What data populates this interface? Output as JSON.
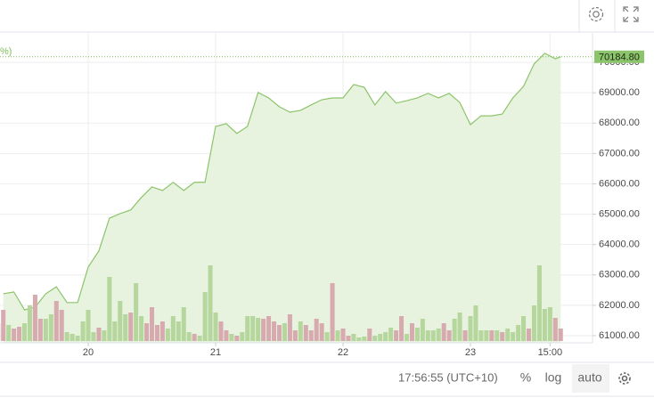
{
  "ui": {
    "partial_legend": "%)",
    "time": "17:56:55 (UTC+10)",
    "percent_button": "%",
    "log_button": "log",
    "auto_button": "auto"
  },
  "chart_data": {
    "type": "area",
    "x": [
      -16,
      -14,
      -12,
      -10,
      -8,
      -6,
      -4,
      -2,
      0,
      2,
      4,
      6,
      8,
      10,
      12,
      14,
      16,
      18,
      20,
      22,
      24,
      26,
      28,
      30,
      32,
      34,
      36,
      38,
      40,
      42,
      44,
      46,
      48,
      50,
      52,
      54,
      56,
      58,
      60,
      62,
      64,
      66,
      68,
      70,
      72,
      74,
      76,
      78,
      80,
      82,
      84,
      86,
      88,
      89
    ],
    "values": [
      62380,
      62440,
      61850,
      61940,
      62380,
      62610,
      62090,
      62090,
      63260,
      63790,
      64870,
      65020,
      65140,
      65550,
      65900,
      65780,
      66050,
      65780,
      66050,
      66050,
      67890,
      67980,
      67660,
      67890,
      69010,
      68830,
      68540,
      68360,
      68420,
      68600,
      68770,
      68830,
      68830,
      69270,
      69180,
      68600,
      69040,
      68660,
      68740,
      68830,
      68980,
      68830,
      68980,
      68680,
      67950,
      68240,
      68240,
      68300,
      68830,
      69210,
      69950,
      70300,
      70120,
      70184.8
    ],
    "color": "#8cc46c",
    "fill": "#e7f3de",
    "xlim": [
      -16.62,
      95
    ],
    "ylim": [
      60765,
      70970
    ],
    "xticks": [
      {
        "value": 0,
        "label": "20"
      },
      {
        "value": 24,
        "label": "21"
      },
      {
        "value": 48,
        "label": "22"
      },
      {
        "value": 72,
        "label": "23"
      },
      {
        "value": 87,
        "label": "15:00"
      }
    ],
    "yticks": [
      {
        "value": 61000,
        "label": "61000.00"
      },
      {
        "value": 62000,
        "label": "62000.00"
      },
      {
        "value": 63000,
        "label": "63000.00"
      },
      {
        "value": 64000,
        "label": "64000.00"
      },
      {
        "value": 65000,
        "label": "65000.00"
      },
      {
        "value": 66000,
        "label": "66000.00"
      },
      {
        "value": 67000,
        "label": "67000.00"
      },
      {
        "value": 68000,
        "label": "68000.00"
      },
      {
        "value": 69000,
        "label": "69000.00"
      },
      {
        "value": 70000,
        "label": "70000.00"
      }
    ],
    "grid": true,
    "last_price": {
      "value": 70184.8,
      "label": "70184.80"
    },
    "volume": {
      "type": "bar",
      "vlim": [
        0,
        100
      ],
      "x": [
        -17,
        -16,
        -15,
        -14,
        -13,
        -12,
        -11,
        -10,
        -9,
        -8,
        -7,
        -6,
        -5,
        -4,
        -3,
        -2,
        -1,
        0,
        1,
        2,
        3,
        4,
        5,
        6,
        7,
        8,
        9,
        10,
        11,
        12,
        13,
        14,
        15,
        16,
        17,
        18,
        19,
        20,
        21,
        22,
        23,
        24,
        25,
        26,
        27,
        28,
        29,
        30,
        31,
        32,
        33,
        34,
        35,
        36,
        37,
        38,
        39,
        40,
        41,
        42,
        43,
        44,
        45,
        46,
        47,
        48,
        49,
        50,
        51,
        52,
        53,
        54,
        55,
        56,
        57,
        58,
        59,
        60,
        61,
        62,
        63,
        64,
        65,
        66,
        67,
        68,
        69,
        70,
        71,
        72,
        73,
        74,
        75,
        76,
        77,
        78,
        79,
        80,
        81,
        82,
        83,
        84,
        85,
        86,
        87,
        88,
        89
      ],
      "values": [
        20,
        35,
        18,
        14,
        16,
        20,
        40,
        52,
        25,
        25,
        30,
        45,
        35,
        10,
        8,
        6,
        22,
        35,
        10,
        15,
        12,
        72,
        22,
        45,
        30,
        32,
        65,
        28,
        20,
        38,
        18,
        22,
        14,
        28,
        22,
        38,
        10,
        8,
        6,
        55,
        85,
        32,
        22,
        12,
        8,
        6,
        10,
        28,
        28,
        26,
        25,
        28,
        22,
        18,
        20,
        30,
        12,
        22,
        18,
        12,
        25,
        20,
        10,
        65,
        12,
        14,
        6,
        8,
        4,
        5,
        14,
        6,
        8,
        10,
        15,
        12,
        28,
        8,
        20,
        15,
        25,
        12,
        12,
        14,
        20,
        12,
        25,
        32,
        12,
        28,
        40,
        12,
        12,
        12,
        12,
        10,
        14,
        10,
        18,
        28,
        14,
        40,
        85,
        36,
        38,
        26,
        14
      ],
      "colors": [
        "#d6aaae",
        "#d6aaae",
        "#b5d69c",
        "#d6aaae",
        "#d6aaae",
        "#b5d69c",
        "#b5d69c",
        "#d6aaae",
        "#d6aaae",
        "#b5d69c",
        "#b5d69c",
        "#d6aaae",
        "#d6aaae",
        "#b5d69c",
        "#b5d69c",
        "#b5d69c",
        "#b5d69c",
        "#b5d69c",
        "#b5d69c",
        "#d6aaae",
        "#b5d69c",
        "#b5d69c",
        "#b5d69c",
        "#b5d69c",
        "#b5d69c",
        "#d6aaae",
        "#b5d69c",
        "#b5d69c",
        "#d6aaae",
        "#d6aaae",
        "#d6aaae",
        "#d6aaae",
        "#b5d69c",
        "#b5d69c",
        "#b5d69c",
        "#b5d69c",
        "#b5d69c",
        "#d6aaae",
        "#b5d69c",
        "#b5d69c",
        "#b5d69c",
        "#b5d69c",
        "#d6aaae",
        "#d6aaae",
        "#b5d69c",
        "#d6aaae",
        "#b5d69c",
        "#b5d69c",
        "#b5d69c",
        "#b5d69c",
        "#d6aaae",
        "#d6aaae",
        "#d6aaae",
        "#d6aaae",
        "#b5d69c",
        "#d6aaae",
        "#d6aaae",
        "#b5d69c",
        "#d6aaae",
        "#d6aaae",
        "#d6aaae",
        "#d6aaae",
        "#b5d69c",
        "#d6aaae",
        "#b5d69c",
        "#d6aaae",
        "#d6aaae",
        "#b5d69c",
        "#b5d69c",
        "#b5d69c",
        "#d6aaae",
        "#b5d69c",
        "#b5d69c",
        "#b5d69c",
        "#b5d69c",
        "#d6aaae",
        "#d6aaae",
        "#b5d69c",
        "#d6aaae",
        "#b5d69c",
        "#b5d69c",
        "#b5d69c",
        "#b5d69c",
        "#b5d69c",
        "#d6aaae",
        "#d6aaae",
        "#b5d69c",
        "#b5d69c",
        "#d6aaae",
        "#b5d69c",
        "#b5d69c",
        "#b5d69c",
        "#b5d69c",
        "#d6aaae",
        "#b5d69c",
        "#d6aaae",
        "#b5d69c",
        "#b5d69c",
        "#b5d69c",
        "#b5d69c",
        "#d6aaae",
        "#b5d69c",
        "#b5d69c",
        "#b5d69c",
        "#b5d69c",
        "#d6aaae",
        "#d6aaae"
      ]
    }
  }
}
